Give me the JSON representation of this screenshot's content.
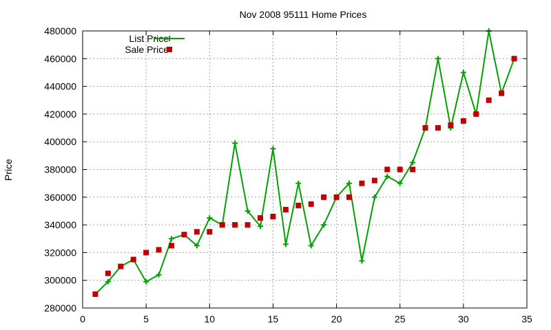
{
  "chart_data": {
    "type": "line",
    "title": "Nov 2008 95111 Home Prices",
    "xlabel": "",
    "ylabel": "Price",
    "xlim": [
      0,
      35
    ],
    "ylim": [
      280000,
      480000
    ],
    "xticks": [
      0,
      5,
      10,
      15,
      20,
      25,
      30,
      35
    ],
    "yticks": [
      280000,
      300000,
      320000,
      340000,
      360000,
      380000,
      400000,
      420000,
      440000,
      460000,
      480000
    ],
    "grid": true,
    "legend_position": "top-left",
    "series": [
      {
        "name": "List Price",
        "style": "line-with-plus-markers",
        "color": "#00a000",
        "x": [
          1,
          2,
          3,
          4,
          5,
          6,
          7,
          8,
          9,
          10,
          11,
          12,
          13,
          14,
          15,
          16,
          17,
          18,
          19,
          20,
          21,
          22,
          23,
          24,
          25,
          26,
          27,
          28,
          29,
          30,
          31,
          32,
          33,
          34
        ],
        "values": [
          290000,
          299000,
          310000,
          315000,
          299000,
          304000,
          330000,
          333000,
          325000,
          345000,
          340000,
          399000,
          350000,
          339000,
          395000,
          326000,
          370000,
          325000,
          340000,
          360000,
          370000,
          314000,
          360000,
          375000,
          370000,
          385000,
          410000,
          460000,
          410000,
          450000,
          420000,
          480000,
          435000,
          460000
        ]
      },
      {
        "name": "Sale Price",
        "style": "square-markers",
        "color": "#c00000",
        "x": [
          1,
          2,
          3,
          4,
          5,
          6,
          7,
          8,
          9,
          10,
          11,
          12,
          13,
          14,
          15,
          16,
          17,
          18,
          19,
          20,
          21,
          22,
          23,
          24,
          25,
          26,
          27,
          28,
          29,
          30,
          31,
          32,
          33,
          34
        ],
        "values": [
          290000,
          305000,
          310000,
          315000,
          320000,
          322000,
          325000,
          333000,
          335000,
          335000,
          340000,
          340000,
          340000,
          345000,
          346000,
          351000,
          354000,
          355000,
          360000,
          360000,
          360000,
          370000,
          372000,
          380000,
          380000,
          380000,
          410000,
          410000,
          412000,
          415000,
          420000,
          430000,
          435000,
          460000
        ]
      }
    ]
  }
}
